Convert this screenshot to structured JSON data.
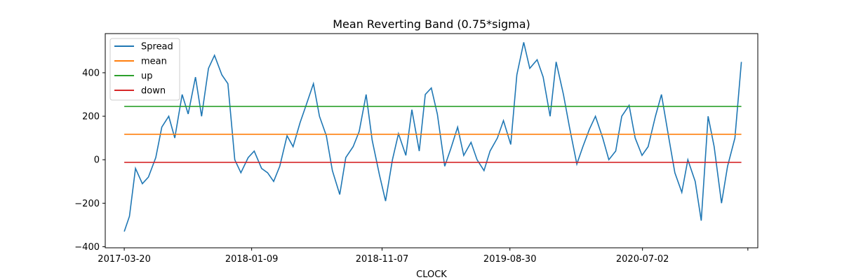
{
  "chart_data": {
    "type": "line",
    "title": "Mean Reverting Band (0.75*sigma)",
    "xlabel": "CLOCK",
    "ylabel": "",
    "x_range": [
      "2017-03-20",
      "2021-02-16"
    ],
    "xlim": [
      "2017-02-04",
      "2021-03-26"
    ],
    "ylim": [
      -405,
      580
    ],
    "yticks": [
      -400,
      -200,
      0,
      200,
      400
    ],
    "xticks": [
      "2017-03-20",
      "2018-01-09",
      "2018-11-07",
      "2019-08-30",
      "2020-07-02",
      ""
    ],
    "grid": false,
    "legend_position": "top-left",
    "series": [
      {
        "name": "Spread",
        "color": "#1f77b4",
        "x": [
          "2017-03-20",
          "2017-04-01",
          "2017-04-15",
          "2017-05-01",
          "2017-05-15",
          "2017-06-01",
          "2017-06-15",
          "2017-07-01",
          "2017-07-15",
          "2017-08-01",
          "2017-08-15",
          "2017-09-01",
          "2017-09-15",
          "2017-10-01",
          "2017-10-15",
          "2017-11-01",
          "2017-11-15",
          "2017-12-01",
          "2017-12-15",
          "2018-01-01",
          "2018-01-15",
          "2018-02-01",
          "2018-02-15",
          "2018-03-01",
          "2018-03-15",
          "2018-04-01",
          "2018-04-15",
          "2018-05-01",
          "2018-05-15",
          "2018-06-01",
          "2018-06-15",
          "2018-07-01",
          "2018-07-15",
          "2018-08-01",
          "2018-08-15",
          "2018-09-01",
          "2018-09-15",
          "2018-10-01",
          "2018-10-15",
          "2018-11-01",
          "2018-11-15",
          "2018-12-01",
          "2018-12-15",
          "2019-01-01",
          "2019-01-15",
          "2019-02-01",
          "2019-02-15",
          "2019-03-01",
          "2019-03-15",
          "2019-04-01",
          "2019-04-15",
          "2019-05-01",
          "2019-05-15",
          "2019-06-01",
          "2019-06-15",
          "2019-07-01",
          "2019-07-15",
          "2019-08-01",
          "2019-08-15",
          "2019-09-01",
          "2019-09-15",
          "2019-10-01",
          "2019-10-15",
          "2019-11-01",
          "2019-11-15",
          "2019-12-01",
          "2019-12-15",
          "2020-01-01",
          "2020-01-15",
          "2020-02-01",
          "2020-02-15",
          "2020-03-01",
          "2020-03-15",
          "2020-04-01",
          "2020-04-15",
          "2020-05-01",
          "2020-05-15",
          "2020-06-01",
          "2020-06-15",
          "2020-07-01",
          "2020-07-15",
          "2020-08-01",
          "2020-08-15",
          "2020-09-01",
          "2020-09-15",
          "2020-10-01",
          "2020-10-15",
          "2020-11-01",
          "2020-11-15",
          "2020-12-01",
          "2020-12-15",
          "2021-01-01",
          "2021-01-15",
          "2021-02-01",
          "2021-02-16"
        ],
        "values": [
          -330,
          -260,
          -40,
          -110,
          -80,
          10,
          150,
          200,
          100,
          300,
          210,
          380,
          200,
          420,
          480,
          390,
          350,
          0,
          -60,
          10,
          40,
          -40,
          -60,
          -100,
          -30,
          110,
          60,
          170,
          250,
          350,
          200,
          110,
          -50,
          -160,
          10,
          60,
          130,
          300,
          90,
          -70,
          -190,
          0,
          120,
          20,
          230,
          40,
          300,
          330,
          210,
          -30,
          50,
          150,
          20,
          80,
          0,
          -50,
          40,
          100,
          180,
          70,
          390,
          540,
          420,
          460,
          380,
          200,
          450,
          300,
          150,
          -20,
          60,
          140,
          200,
          100,
          0,
          40,
          200,
          250,
          100,
          20,
          60,
          200,
          300,
          100,
          -60,
          -150,
          0,
          -100,
          -280,
          200,
          60,
          -200,
          -30,
          100,
          450
        ]
      },
      {
        "name": "mean",
        "color": "#ff7f0e",
        "x": [
          "2017-03-20",
          "2021-02-16"
        ],
        "values": [
          117,
          117
        ]
      },
      {
        "name": "up",
        "color": "#2ca02c",
        "x": [
          "2017-03-20",
          "2021-02-16"
        ],
        "values": [
          245,
          245
        ]
      },
      {
        "name": "down",
        "color": "#d62728",
        "x": [
          "2017-03-20",
          "2021-02-16"
        ],
        "values": [
          -12,
          -12
        ]
      }
    ]
  }
}
